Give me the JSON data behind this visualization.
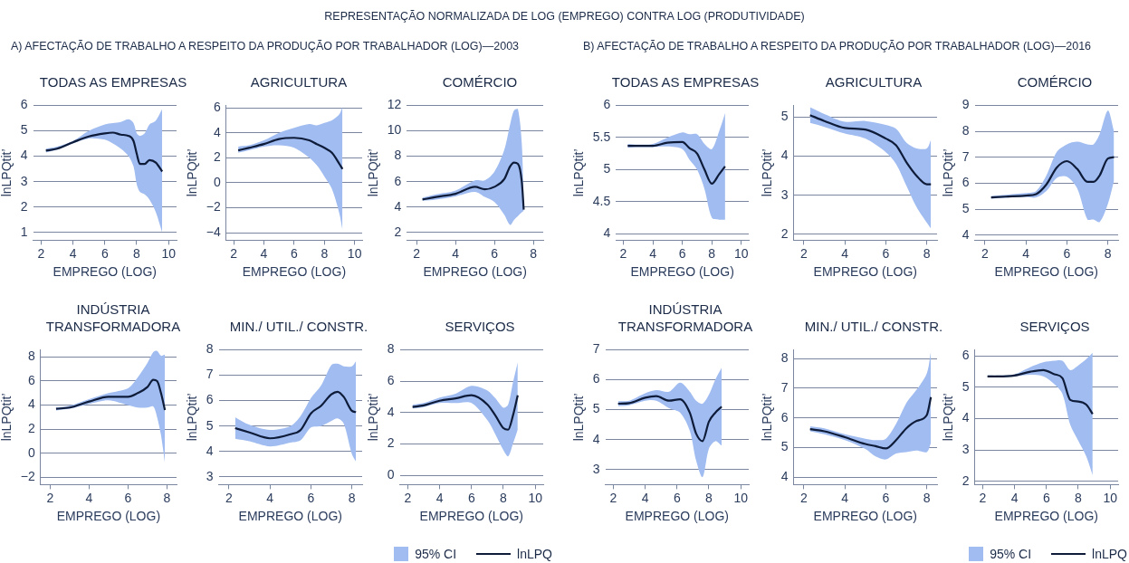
{
  "chart_data": [
    {
      "type": "line",
      "title": "TODAS AS EMPRESAS",
      "subtitle": "A) AFECTAÇÃO DE TRABALHO A RESPEITO DA PRODUÇÃO POR TRABALHADOR (LOG)—2003",
      "annotations": [
        "REPRESENTAÇÃO NORMALIZADA DE LOG (EMPREGO) CONTRA LOG (PRODUTIVIDADE)"
      ],
      "xlabel": "EMPREGO (LOG)",
      "ylabel": "lnLPQtit’",
      "xlim": [
        1.5,
        10.5
      ],
      "xticks": [
        2,
        4,
        6,
        8,
        10
      ],
      "ylim": [
        0.7,
        6
      ],
      "yticks": [
        1,
        2,
        3,
        4,
        5,
        6
      ],
      "grid": "y",
      "series": [
        {
          "color": "#0e1c3a",
          "x": [
            2.3,
            3,
            4,
            5,
            6,
            6.5,
            7,
            7.5,
            7.8,
            8,
            8.2,
            8.5,
            8.8,
            9.2,
            9.6
          ],
          "values": [
            4.22,
            4.3,
            4.55,
            4.78,
            4.9,
            4.93,
            4.85,
            4.8,
            4.6,
            4.1,
            3.7,
            3.7,
            3.85,
            3.75,
            3.4
          ],
          "lower": [
            4.15,
            4.25,
            4.5,
            4.7,
            4.65,
            4.5,
            4.3,
            4.0,
            3.6,
            2.9,
            2.6,
            2.5,
            2.3,
            1.8,
            1.0
          ],
          "upper": [
            4.3,
            4.38,
            4.6,
            5.0,
            5.25,
            5.3,
            5.35,
            5.45,
            5.3,
            4.9,
            4.8,
            4.9,
            5.25,
            5.4,
            5.85
          ]
        }
      ]
    },
    {
      "type": "line",
      "title": "AGRICULTURA",
      "xlabel": "EMPREGO (LOG)",
      "ylabel": "lnLPQtit’",
      "xlim": [
        1.5,
        10.5
      ],
      "xticks": [
        2,
        4,
        6,
        8,
        10
      ],
      "ylim": [
        -4.6,
        6.2
      ],
      "yticks": [
        -4,
        -2,
        0,
        2,
        4,
        6
      ],
      "grid": "y",
      "series": [
        {
          "color": "#0e1c3a",
          "x": [
            2.3,
            3,
            4,
            5,
            6,
            7,
            7.5,
            8,
            8.5,
            9,
            9.2
          ],
          "values": [
            2.6,
            2.8,
            3.1,
            3.5,
            3.6,
            3.4,
            3.1,
            2.8,
            2.4,
            1.5,
            1.1
          ],
          "lower": [
            2.4,
            2.6,
            2.9,
            3.0,
            2.8,
            2.0,
            1.4,
            0.5,
            -0.5,
            -2.5,
            -3.8
          ],
          "upper": [
            2.9,
            3.0,
            3.4,
            4.0,
            4.4,
            4.7,
            4.6,
            4.8,
            5.0,
            5.5,
            6.1
          ]
        }
      ]
    },
    {
      "type": "line",
      "title": "COMÉRCIO",
      "xlabel": "EMPREGO (LOG)",
      "ylabel": "lnLPQtit’",
      "xlim": [
        1.5,
        8.5
      ],
      "xticks": [
        2,
        4,
        6,
        8
      ],
      "ylim": [
        1.4,
        12
      ],
      "yticks": [
        2,
        4,
        6,
        8,
        10,
        12
      ],
      "grid": "y",
      "series": [
        {
          "color": "#0e1c3a",
          "x": [
            2.3,
            3,
            4,
            5,
            5.5,
            6,
            6.5,
            6.8,
            7,
            7.2,
            7.4,
            7.5
          ],
          "values": [
            4.6,
            4.8,
            5.05,
            5.6,
            5.4,
            5.6,
            6.2,
            7.2,
            7.5,
            7.4,
            6.0,
            3.8
          ],
          "lower": [
            4.5,
            4.6,
            4.85,
            5.2,
            4.8,
            4.4,
            3.4,
            2.6,
            3.0,
            3.3,
            3.6,
            3.7
          ],
          "upper": [
            4.75,
            5.0,
            5.3,
            6.1,
            6.1,
            6.8,
            8.5,
            10.5,
            11.6,
            11.7,
            9.0,
            3.9
          ]
        }
      ]
    },
    {
      "type": "line",
      "title": "INDÚSTRIA TRANSFORMADORA",
      "xlabel": "EMPREGO (LOG)",
      "ylabel": "lnLPQtit’",
      "xlim": [
        1.5,
        8.5
      ],
      "xticks": [
        2,
        4,
        6,
        8
      ],
      "ylim": [
        -2.6,
        8.6
      ],
      "yticks": [
        -2,
        0,
        2,
        4,
        6,
        8
      ],
      "grid": "y",
      "series": [
        {
          "color": "#0e1c3a",
          "x": [
            2.3,
            3,
            4,
            5,
            6,
            6.5,
            7,
            7.3,
            7.5,
            7.7,
            7.9
          ],
          "values": [
            3.7,
            3.8,
            4.3,
            4.7,
            4.7,
            5.0,
            5.5,
            6.1,
            6.0,
            5.0,
            3.6
          ],
          "lower": [
            3.55,
            3.7,
            4.1,
            4.4,
            4.0,
            3.8,
            3.8,
            3.9,
            3.0,
            1.5,
            -0.8
          ],
          "upper": [
            3.8,
            3.95,
            4.5,
            5.0,
            5.4,
            6.3,
            7.5,
            8.4,
            8.5,
            8.1,
            8.2
          ]
        }
      ]
    },
    {
      "type": "line",
      "title": "MIN./ UTIL./ CONSTR.",
      "xlabel": "EMPREGO (LOG)",
      "ylabel": "lnLPQtit’",
      "xlim": [
        1.5,
        8.5
      ],
      "xticks": [
        2,
        4,
        6,
        8
      ],
      "ylim": [
        2.7,
        8
      ],
      "yticks": [
        3,
        4,
        5,
        6,
        7,
        8
      ],
      "grid": "y",
      "series": [
        {
          "color": "#0e1c3a",
          "x": [
            2.3,
            3,
            4,
            5,
            5.5,
            6,
            6.5,
            7,
            7.3,
            7.6,
            8,
            8.2
          ],
          "values": [
            4.92,
            4.75,
            4.52,
            4.68,
            4.85,
            5.5,
            5.8,
            6.25,
            6.35,
            6.15,
            5.6,
            5.55
          ],
          "lower": [
            4.5,
            4.4,
            4.2,
            4.35,
            4.45,
            4.95,
            5.0,
            5.2,
            5.3,
            5.1,
            3.9,
            3.6
          ],
          "upper": [
            5.35,
            5.05,
            4.85,
            5.0,
            5.4,
            6.1,
            6.6,
            7.4,
            7.45,
            7.35,
            7.35,
            7.55
          ]
        }
      ]
    },
    {
      "type": "line",
      "title": "SERVIÇOS",
      "xlabel": "EMPREGO (LOG)",
      "ylabel": "lnLPQtit’",
      "xlim": [
        1.5,
        10.5
      ],
      "xticks": [
        2,
        4,
        6,
        8,
        10
      ],
      "ylim": [
        -0.6,
        8
      ],
      "yticks": [
        0,
        2,
        4,
        6,
        8
      ],
      "grid": "y",
      "legend": "bottom right",
      "annotations": [
        "95% CI"
      ],
      "series": [
        {
          "name": "lnLPQ",
          "color": "#0e1c3a",
          "x": [
            2.3,
            3,
            4,
            5,
            6,
            7,
            7.5,
            8,
            8.3,
            8.6,
            8.9
          ],
          "values": [
            4.35,
            4.45,
            4.75,
            4.9,
            5.1,
            4.5,
            3.8,
            3.0,
            2.9,
            3.8,
            5.1
          ],
          "lower": [
            4.25,
            4.35,
            4.6,
            4.6,
            4.6,
            3.5,
            2.6,
            1.6,
            1.2,
            2.0,
            2.9
          ],
          "upper": [
            4.5,
            4.6,
            4.95,
            5.2,
            5.7,
            5.4,
            4.9,
            4.3,
            4.5,
            5.9,
            7.2
          ]
        }
      ]
    },
    {
      "type": "line",
      "title": "TODAS AS EMPRESAS",
      "subtitle": "B) AFECTAÇÃO DE TRABALHO A RESPEITO DA PRODUÇÃO POR TRABALHADOR (LOG)—2016",
      "xlabel": "EMPREGO (LOG)",
      "ylabel": "lnLPQtit’",
      "xlim": [
        1.5,
        10.5
      ],
      "xticks": [
        2,
        4,
        6,
        8,
        10
      ],
      "ylim": [
        3.9,
        6
      ],
      "yticks": [
        4,
        4.5,
        5,
        5.5,
        6
      ],
      "grid": "y",
      "series": [
        {
          "color": "#0e1c3a",
          "x": [
            2.3,
            3,
            4,
            5,
            6,
            6.5,
            7,
            7.5,
            8,
            8.5,
            8.9
          ],
          "values": [
            5.37,
            5.37,
            5.37,
            5.42,
            5.43,
            5.33,
            5.25,
            5.0,
            4.78,
            4.93,
            5.05
          ],
          "lower": [
            5.34,
            5.35,
            5.35,
            5.36,
            5.32,
            5.15,
            5.0,
            4.7,
            4.25,
            4.22,
            4.22
          ],
          "upper": [
            5.4,
            5.39,
            5.4,
            5.5,
            5.58,
            5.55,
            5.55,
            5.4,
            5.32,
            5.6,
            5.88
          ]
        }
      ]
    },
    {
      "type": "line",
      "title": "AGRICULTURA",
      "xlabel": "EMPREGO (LOG)",
      "ylabel": "lnLPQtit’",
      "xlim": [
        1.5,
        8.5
      ],
      "xticks": [
        2,
        4,
        6,
        8
      ],
      "ylim": [
        1.85,
        5.3
      ],
      "yticks": [
        2,
        3,
        4,
        5
      ],
      "grid": "y",
      "series": [
        {
          "color": "#0e1c3a",
          "x": [
            2.3,
            3,
            4,
            5,
            6,
            6.5,
            7,
            7.5,
            8,
            8.2
          ],
          "values": [
            5.05,
            4.9,
            4.72,
            4.68,
            4.45,
            4.28,
            3.85,
            3.5,
            3.28,
            3.28
          ],
          "lower": [
            4.85,
            4.75,
            4.58,
            4.45,
            4.1,
            3.8,
            3.25,
            2.7,
            2.3,
            2.15
          ],
          "upper": [
            5.25,
            5.08,
            4.88,
            4.9,
            4.8,
            4.7,
            4.35,
            4.2,
            4.2,
            4.42
          ]
        }
      ]
    },
    {
      "type": "line",
      "title": "COMÉRCIO",
      "xlabel": "EMPREGO (LOG)",
      "ylabel": "lnLPQtit’",
      "xlim": [
        1.5,
        8.5
      ],
      "xticks": [
        2,
        4,
        6,
        8
      ],
      "ylim": [
        3.8,
        9
      ],
      "yticks": [
        4,
        5,
        6,
        7,
        8,
        9
      ],
      "grid": "y",
      "series": [
        {
          "color": "#0e1c3a",
          "x": [
            2.3,
            3,
            4,
            4.5,
            5,
            5.5,
            6,
            6.5,
            7,
            7.3,
            7.6,
            8,
            8.3
          ],
          "values": [
            5.45,
            5.48,
            5.52,
            5.58,
            5.95,
            6.6,
            6.85,
            6.55,
            6.05,
            6.05,
            6.3,
            6.95,
            7.0
          ],
          "lower": [
            5.4,
            5.44,
            5.47,
            5.45,
            5.7,
            6.2,
            6.25,
            5.8,
            4.6,
            4.6,
            4.5,
            5.2,
            6.1
          ],
          "upper": [
            5.5,
            5.55,
            5.62,
            5.7,
            6.3,
            7.2,
            7.5,
            7.6,
            7.5,
            7.5,
            7.9,
            8.8,
            8.0
          ]
        }
      ]
    },
    {
      "type": "line",
      "title": "INDÚSTRIA TRANSFORMADORA",
      "xlabel": "EMPREGO (LOG)",
      "ylabel": "lnLPQtit’",
      "xlim": [
        1.5,
        10.5
      ],
      "xticks": [
        2,
        4,
        6,
        8,
        10
      ],
      "ylim": [
        2.5,
        7
      ],
      "yticks": [
        3,
        4,
        5,
        6,
        7
      ],
      "grid": "y",
      "series": [
        {
          "color": "#0e1c3a",
          "x": [
            2.3,
            3,
            4,
            4.7,
            5.5,
            6.2,
            6.8,
            7.2,
            7.6,
            8,
            8.4,
            8.8
          ],
          "values": [
            5.2,
            5.22,
            5.4,
            5.45,
            5.3,
            5.35,
            4.9,
            4.2,
            3.95,
            4.6,
            4.9,
            5.1
          ],
          "lower": [
            5.12,
            5.15,
            5.3,
            5.3,
            5.05,
            4.9,
            4.3,
            3.3,
            2.75,
            3.7,
            3.95,
            3.8
          ],
          "upper": [
            5.28,
            5.3,
            5.55,
            5.65,
            5.6,
            5.9,
            5.6,
            5.3,
            5.2,
            5.5,
            6.0,
            6.4
          ]
        }
      ]
    },
    {
      "type": "line",
      "title": "MIN./ UTIL./ CONSTR.",
      "xlabel": "EMPREGO (LOG)",
      "ylabel": "lnLPQtit’",
      "xlim": [
        1.5,
        8.5
      ],
      "xticks": [
        2,
        4,
        6,
        8
      ],
      "ylim": [
        3.75,
        8.3
      ],
      "yticks": [
        4,
        5,
        6,
        7,
        8
      ],
      "grid": "y",
      "series": [
        {
          "color": "#0e1c3a",
          "x": [
            2.3,
            3,
            4,
            5,
            5.5,
            6,
            6.5,
            7,
            7.5,
            8,
            8.2
          ],
          "values": [
            5.62,
            5.55,
            5.35,
            5.12,
            5.05,
            4.97,
            5.25,
            5.65,
            5.9,
            6.1,
            6.7
          ],
          "lower": [
            5.55,
            5.45,
            5.25,
            4.95,
            4.7,
            4.6,
            4.8,
            4.85,
            4.9,
            4.85,
            5.15
          ],
          "upper": [
            5.72,
            5.65,
            5.45,
            5.3,
            5.25,
            5.3,
            5.8,
            6.5,
            6.95,
            7.5,
            8.25
          ]
        }
      ]
    },
    {
      "type": "line",
      "title": "SERVIÇOS",
      "xlabel": "EMPREGO (LOG)",
      "ylabel": "lnLPQtit’",
      "xlim": [
        1.5,
        10.5
      ],
      "xticks": [
        2,
        4,
        6,
        8,
        10
      ],
      "ylim": [
        1.9,
        6.2
      ],
      "yticks": [
        2,
        3,
        4,
        5,
        6
      ],
      "grid": "y",
      "legend": "bottom right",
      "annotations": [
        "95% CI"
      ],
      "series": [
        {
          "name": "lnLPQ",
          "color": "#0e1c3a",
          "x": [
            2.3,
            3,
            4,
            5,
            5.8,
            6.5,
            7,
            7.5,
            8,
            8.5,
            8.9
          ],
          "values": [
            5.35,
            5.35,
            5.38,
            5.5,
            5.55,
            5.42,
            5.3,
            4.6,
            4.55,
            4.45,
            4.15
          ],
          "lower": [
            5.32,
            5.32,
            5.35,
            5.4,
            5.35,
            5.1,
            4.8,
            3.8,
            3.3,
            2.8,
            2.2
          ],
          "upper": [
            5.38,
            5.38,
            5.42,
            5.65,
            5.8,
            5.85,
            5.85,
            5.55,
            5.7,
            5.9,
            6.1
          ]
        }
      ]
    }
  ]
}
